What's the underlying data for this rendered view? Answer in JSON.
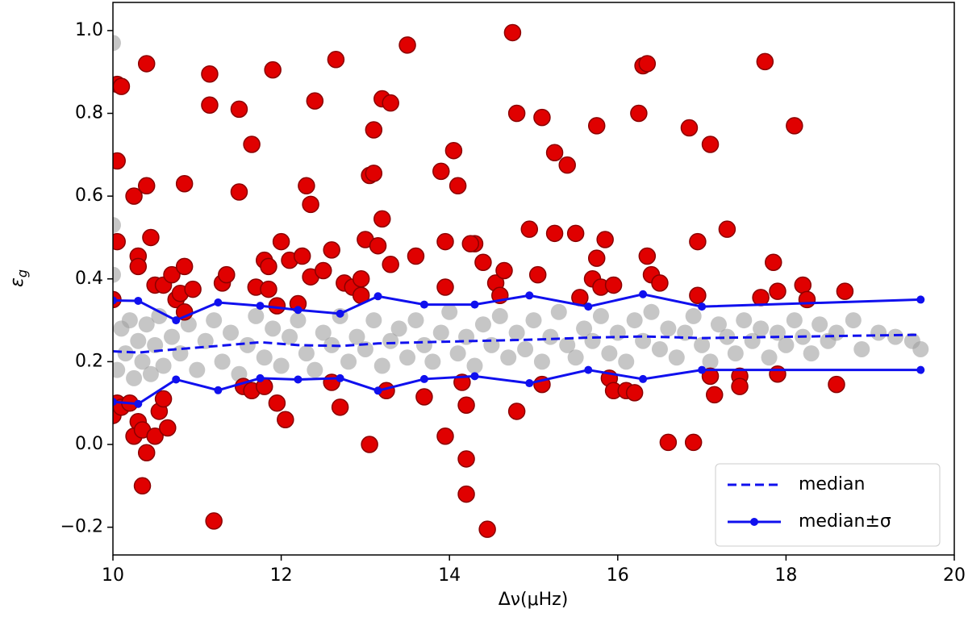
{
  "chart_data": {
    "type": "scatter",
    "xlabel": "Δν(μHz)",
    "ylabel": "ε",
    "ylabel_sub": "g",
    "xlim": [
      10,
      20
    ],
    "ylim": [
      -0.267,
      1.068
    ],
    "xticks": [
      10,
      12,
      14,
      16,
      18,
      20
    ],
    "yticks": [
      {
        "value": -0.2,
        "label": "−0.2"
      },
      {
        "value": 0,
        "label": "0.0"
      },
      0.2,
      0.4,
      0.6,
      0.8,
      {
        "value": 1,
        "label": "1.0"
      }
    ],
    "legend": "lower right",
    "scatter_sets": [
      {
        "color": "#a0a0a0",
        "x": [
          10.0,
          10.0,
          10.0,
          10.05,
          10.1,
          10.15,
          10.2,
          10.25,
          10.3,
          10.35,
          10.4,
          10.45,
          10.5,
          10.55,
          10.6,
          10.7,
          10.8,
          10.9,
          11.0,
          11.1,
          11.2,
          11.3,
          11.4,
          11.5,
          11.6,
          11.7,
          11.8,
          11.9,
          12.0,
          12.1,
          12.2,
          12.3,
          12.4,
          12.5,
          12.6,
          12.7,
          12.8,
          12.9,
          13.0,
          13.1,
          13.2,
          13.3,
          13.4,
          13.5,
          13.6,
          13.7,
          13.8,
          13.9,
          14.0,
          14.1,
          14.2,
          14.3,
          14.4,
          14.5,
          14.6,
          14.7,
          14.8,
          14.9,
          15.0,
          15.1,
          15.2,
          15.3,
          15.4,
          15.5,
          15.6,
          15.7,
          15.8,
          15.9,
          16.0,
          16.1,
          16.2,
          16.3,
          16.4,
          16.5,
          16.6,
          16.7,
          16.8,
          16.9,
          17.0,
          17.1,
          17.2,
          17.3,
          17.4,
          17.5,
          17.6,
          17.7,
          17.8,
          17.9,
          18.0,
          18.1,
          18.2,
          18.3,
          18.4,
          18.5,
          18.6,
          18.8,
          18.9,
          19.1,
          19.3,
          19.5,
          19.6
        ],
        "values": [
          0.97,
          0.53,
          0.41,
          0.18,
          0.28,
          0.22,
          0.3,
          0.16,
          0.25,
          0.2,
          0.29,
          0.17,
          0.24,
          0.31,
          0.19,
          0.26,
          0.22,
          0.29,
          0.18,
          0.25,
          0.3,
          0.2,
          0.27,
          0.17,
          0.24,
          0.31,
          0.21,
          0.28,
          0.19,
          0.26,
          0.3,
          0.22,
          0.18,
          0.27,
          0.24,
          0.31,
          0.2,
          0.26,
          0.23,
          0.3,
          0.19,
          0.25,
          0.28,
          0.21,
          0.3,
          0.24,
          0.2,
          0.27,
          0.32,
          0.22,
          0.26,
          0.19,
          0.29,
          0.24,
          0.31,
          0.21,
          0.27,
          0.23,
          0.3,
          0.2,
          0.26,
          0.32,
          0.24,
          0.21,
          0.28,
          0.25,
          0.31,
          0.22,
          0.27,
          0.2,
          0.3,
          0.25,
          0.32,
          0.23,
          0.28,
          0.21,
          0.27,
          0.31,
          0.24,
          0.2,
          0.29,
          0.26,
          0.22,
          0.3,
          0.25,
          0.28,
          0.21,
          0.27,
          0.24,
          0.3,
          0.26,
          0.22,
          0.29,
          0.25,
          0.27,
          0.3,
          0.23,
          0.27,
          0.26,
          0.25,
          0.23
        ]
      },
      {
        "color": "#e00000",
        "edgecolor": "#8b0000",
        "x": [
          10.05,
          10.05,
          10.1,
          10.05,
          10.0,
          10.0,
          10.05,
          10.1,
          10.2,
          10.25,
          10.25,
          10.3,
          10.3,
          10.3,
          10.35,
          10.35,
          10.4,
          10.4,
          10.4,
          10.45,
          10.5,
          10.5,
          10.55,
          10.6,
          10.6,
          10.65,
          10.7,
          10.75,
          10.8,
          10.85,
          10.85,
          10.85,
          10.95,
          11.15,
          11.15,
          11.2,
          11.3,
          11.35,
          11.5,
          11.5,
          11.55,
          11.65,
          11.65,
          11.7,
          11.8,
          11.85,
          11.85,
          11.9,
          11.95,
          11.8,
          11.95,
          12.0,
          12.05,
          12.1,
          12.2,
          12.25,
          12.3,
          12.35,
          12.35,
          12.4,
          12.5,
          12.6,
          12.65,
          12.6,
          12.7,
          12.75,
          12.85,
          12.95,
          12.95,
          13.0,
          13.05,
          13.1,
          13.05,
          13.1,
          13.15,
          13.2,
          13.2,
          13.25,
          13.3,
          13.3,
          13.5,
          13.6,
          13.7,
          13.9,
          13.95,
          13.95,
          13.95,
          14.05,
          14.1,
          14.15,
          14.2,
          14.2,
          14.2,
          14.3,
          14.25,
          14.4,
          14.45,
          14.55,
          14.6,
          14.65,
          14.75,
          14.8,
          14.8,
          14.95,
          15.1,
          15.05,
          15.1,
          15.25,
          15.25,
          15.4,
          15.5,
          15.55,
          15.7,
          15.75,
          15.75,
          15.8,
          15.85,
          15.9,
          15.95,
          15.95,
          16.1,
          16.2,
          16.25,
          16.3,
          16.35,
          16.35,
          16.4,
          16.5,
          16.6,
          16.85,
          16.9,
          16.95,
          16.95,
          17.1,
          17.1,
          17.15,
          17.3,
          17.45,
          17.45,
          17.7,
          17.75,
          17.85,
          17.9,
          17.9,
          18.1,
          18.2,
          18.25,
          18.6,
          18.7
        ],
        "values": [
          0.685,
          0.87,
          0.865,
          0.49,
          0.35,
          0.07,
          0.1,
          0.09,
          0.1,
          0.02,
          0.6,
          0.455,
          0.43,
          0.055,
          0.035,
          -0.1,
          0.92,
          0.625,
          -0.02,
          0.5,
          0.385,
          0.02,
          0.08,
          0.385,
          0.11,
          0.04,
          0.41,
          0.35,
          0.365,
          0.63,
          0.43,
          0.32,
          0.375,
          0.895,
          0.82,
          -0.185,
          0.39,
          0.41,
          0.81,
          0.61,
          0.14,
          0.13,
          0.725,
          0.38,
          0.445,
          0.43,
          0.375,
          0.905,
          0.335,
          0.14,
          0.1,
          0.49,
          0.06,
          0.445,
          0.34,
          0.455,
          0.625,
          0.58,
          0.405,
          0.83,
          0.42,
          0.47,
          0.93,
          0.15,
          0.09,
          0.39,
          0.38,
          0.36,
          0.4,
          0.495,
          0.65,
          0.655,
          0.0,
          0.76,
          0.48,
          0.545,
          0.835,
          0.13,
          0.825,
          0.435,
          0.965,
          0.455,
          0.115,
          0.66,
          0.49,
          0.38,
          0.02,
          0.71,
          0.625,
          0.15,
          0.095,
          -0.12,
          -0.035,
          0.485,
          0.485,
          0.44,
          -0.205,
          0.39,
          0.36,
          0.42,
          0.995,
          0.8,
          0.08,
          0.52,
          0.79,
          0.41,
          0.145,
          0.705,
          0.51,
          0.675,
          0.51,
          0.355,
          0.4,
          0.77,
          0.45,
          0.38,
          0.495,
          0.16,
          0.13,
          0.385,
          0.13,
          0.125,
          0.8,
          0.915,
          0.92,
          0.455,
          0.41,
          0.39,
          0.005,
          0.765,
          0.005,
          0.36,
          0.49,
          0.725,
          0.165,
          0.12,
          0.52,
          0.165,
          0.14,
          0.355,
          0.925,
          0.44,
          0.37,
          0.17,
          0.77,
          0.385,
          0.35,
          0.145,
          0.37
        ]
      }
    ],
    "lines": [
      {
        "name": "median",
        "color": "#1010ee",
        "style": "dashed",
        "x": [
          10,
          10.3,
          10.75,
          11.25,
          11.75,
          12.2,
          12.7,
          13.15,
          13.7,
          14.3,
          14.95,
          15.65,
          16.3,
          17,
          19.6
        ],
        "values": [
          0.225,
          0.222,
          0.23,
          0.238,
          0.247,
          0.24,
          0.238,
          0.244,
          0.247,
          0.25,
          0.253,
          0.258,
          0.261,
          0.257,
          0.265
        ]
      },
      {
        "name": "median±σ",
        "color": "#1010ee",
        "style": "solid",
        "marker": true,
        "x": [
          10,
          10.3,
          10.75,
          11.25,
          11.75,
          12.2,
          12.7,
          13.15,
          13.7,
          14.3,
          14.95,
          15.65,
          16.3,
          17,
          19.6
        ],
        "upper": [
          0.348,
          0.347,
          0.3,
          0.343,
          0.335,
          0.325,
          0.316,
          0.358,
          0.338,
          0.338,
          0.36,
          0.333,
          0.363,
          0.333,
          0.35
        ],
        "lower": [
          0.103,
          0.098,
          0.157,
          0.131,
          0.16,
          0.157,
          0.16,
          0.13,
          0.158,
          0.165,
          0.148,
          0.18,
          0.158,
          0.18,
          0.18
        ]
      }
    ]
  }
}
